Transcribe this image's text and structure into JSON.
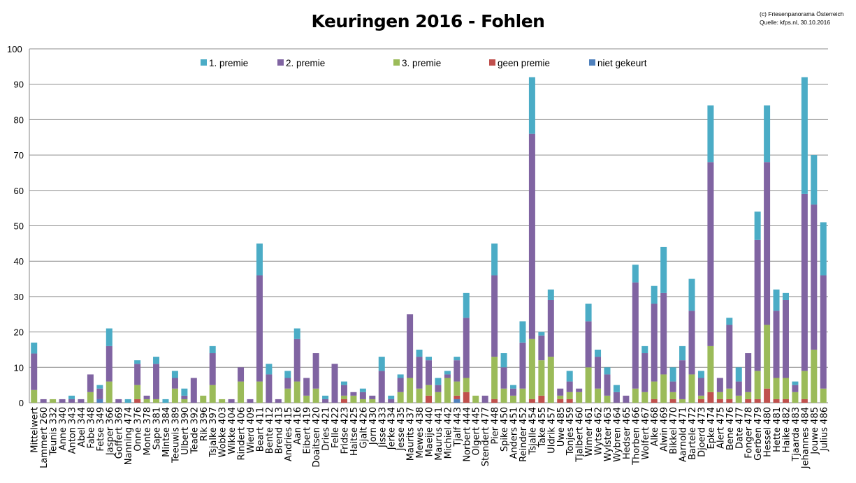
{
  "chart_data": {
    "type": "bar",
    "stacked": true,
    "title": "Keuringen 2016 - Fohlen",
    "credit": [
      "(c) Friesenpanorama Österreich",
      "Quelle: kfps.nl, 30.10.2016"
    ],
    "xlabel": "",
    "ylabel": "",
    "ylim": [
      0,
      100
    ],
    "yticks": [
      0,
      10,
      20,
      30,
      40,
      50,
      60,
      70,
      80,
      90,
      100
    ],
    "grid": true,
    "legend_position": "top",
    "legend": [
      "1. premie",
      "2. premie",
      "3. premie",
      "geen premie",
      "niet gekeurt"
    ],
    "colors": {
      "1. premie": "#4BACC6",
      "2. premie": "#8064A2",
      "3. premie": "#9BBB59",
      "geen premie": "#C0504D",
      "niet gekeurt": "#4F81BD"
    },
    "categories": [
      "Mittelwert",
      "Lammert 260",
      "Teunis 332",
      "Anne 340",
      "Anton 343",
      "Abel 344",
      "Fabe 348",
      "Fetse 349",
      "Jasper 366",
      "Goffert 369",
      "Nanning 474",
      "Onne 376",
      "Monte 378",
      "Sape 381",
      "Mintse 384",
      "Teeuwis 389",
      "Ulbert 390",
      "Teade 392",
      "Rik 396",
      "Tsjalke 397",
      "Wobke 403",
      "Wikke 404",
      "Rindert 406",
      "Wierd 409",
      "Beart 411",
      "Bente 412",
      "Brend 413",
      "Andries 415",
      "Aan 416",
      "Eibert 419",
      "Doaitsen 420",
      "Dries 421",
      "Felle 422",
      "Fridse 423",
      "Haitse 425",
      "Gjalt 426",
      "Jorn 430",
      "Jisse 433",
      "Jerke 434",
      "Jesse 435",
      "Maurits 437",
      "Mewes 438",
      "Maeije 440",
      "Maurus 441",
      "Michiel 442",
      "Tjalf 443",
      "Norbert 444",
      "Olgert 445",
      "Stendert 477",
      "Pier 448",
      "Spike 450",
      "Anders 451",
      "Reinder 452",
      "Tsjalle 454",
      "Take 455",
      "Uldrik 457",
      "Uwe 485",
      "Tonjes 459",
      "Tjalbert 460",
      "Wimer 461",
      "Wytse 462",
      "Wylster 463",
      "Wybren 464",
      "Hedser 465",
      "Thorben 466",
      "Wolfert 467",
      "Alke 468",
      "Alwin 469",
      "Bikkel 470",
      "Aarnold 471",
      "Bartele 472",
      "Djoerd 473",
      "Epke 474",
      "Alert 475",
      "Bene 476",
      "Date 477",
      "Fonger 478",
      "Gerben 479",
      "Hessel 480",
      "Hette 481",
      "Haike 482",
      "Tjaarda 483",
      "Jehannes 484",
      "Jouwe 485",
      "Julius 486"
    ],
    "series": [
      {
        "name": "niet gekeurt",
        "values": [
          0,
          0,
          0,
          0,
          0,
          0,
          0,
          1,
          0,
          0,
          0,
          0,
          0,
          0,
          0,
          0,
          0,
          0,
          0,
          0,
          0,
          0,
          0,
          0,
          0,
          0,
          0,
          0,
          0,
          0,
          0,
          0,
          0,
          0,
          0,
          0,
          0,
          0,
          0,
          0,
          0,
          0,
          0,
          0,
          0,
          1,
          0,
          0,
          0,
          0,
          0,
          0,
          0,
          0,
          0,
          0,
          0,
          0,
          0,
          0,
          0,
          0,
          0,
          0,
          0,
          0,
          0,
          0,
          0,
          0,
          0,
          0,
          0,
          0,
          0,
          0,
          0,
          0,
          0,
          0,
          0,
          0,
          0,
          0,
          0
        ]
      },
      {
        "name": "geen premie",
        "values": [
          0,
          0,
          0,
          0,
          0,
          0,
          0,
          0,
          0,
          0,
          0,
          1,
          0,
          0,
          0,
          0,
          0,
          0,
          0,
          0,
          0,
          0,
          0,
          0,
          0,
          0,
          0,
          0,
          0,
          0,
          0,
          0,
          0,
          1,
          0,
          0,
          0,
          0,
          0,
          0,
          0,
          0,
          2,
          0,
          0,
          1,
          3,
          0,
          0,
          1,
          0,
          0,
          0,
          1,
          2,
          0,
          1,
          1,
          0,
          0,
          0,
          0,
          0,
          0,
          0,
          0,
          1,
          0,
          1,
          0,
          0,
          1,
          3,
          1,
          1,
          0,
          1,
          1,
          4,
          1,
          1,
          0,
          1,
          0,
          0
        ]
      },
      {
        "name": "3. premie",
        "values": [
          3.6,
          0,
          1,
          0,
          0,
          0,
          3,
          0,
          6,
          0,
          0,
          4,
          1,
          1,
          0,
          4,
          1,
          0,
          2,
          5,
          1,
          0,
          6,
          0,
          6,
          0,
          0,
          4,
          6,
          2,
          4,
          0,
          0,
          1,
          2,
          1,
          1,
          0,
          0,
          3,
          7,
          4,
          3,
          3,
          7,
          4,
          4,
          2,
          0,
          12,
          4,
          2,
          4,
          17,
          10,
          13,
          1,
          2,
          3,
          10,
          4,
          2,
          0,
          0,
          4,
          3,
          5,
          8,
          2,
          1,
          8,
          1,
          13,
          2,
          3,
          2,
          2,
          8,
          18,
          6,
          6,
          3,
          8,
          15,
          4
        ]
      },
      {
        "name": "2. premie",
        "values": [
          10.3,
          1,
          0,
          1,
          1,
          1,
          5,
          3,
          10,
          1,
          0,
          6,
          1,
          10,
          0,
          3,
          1,
          7,
          0,
          9,
          0,
          1,
          4,
          1,
          30,
          8,
          1,
          3,
          12,
          5,
          10,
          1,
          11,
          3,
          1,
          2,
          1,
          9,
          1,
          4,
          18,
          9,
          7,
          2,
          1,
          6,
          17,
          0,
          2,
          23,
          6,
          2,
          13,
          58,
          7,
          16,
          2,
          3,
          1,
          13,
          9,
          6,
          3,
          2,
          30,
          11,
          22,
          23,
          3,
          11,
          18,
          5,
          52,
          4,
          18,
          4,
          11,
          37,
          46,
          19,
          22,
          2,
          50,
          41,
          32
        ]
      },
      {
        "name": "1. premie",
        "values": [
          3.1,
          0,
          0,
          0,
          1,
          0,
          0,
          1,
          5,
          0,
          1,
          1,
          0,
          2,
          1,
          2,
          2,
          0,
          0,
          2,
          0,
          0,
          0,
          0,
          9,
          3,
          0,
          2,
          3,
          0,
          0,
          1,
          0,
          1,
          0,
          1,
          0,
          4,
          1,
          1,
          0,
          2,
          1,
          2,
          1,
          1,
          7,
          0,
          0,
          9,
          4,
          1,
          6,
          16,
          1,
          3,
          0,
          3,
          0,
          5,
          2,
          2,
          2,
          0,
          5,
          2,
          5,
          13,
          4,
          4,
          9,
          2,
          16,
          0,
          2,
          4,
          0,
          8,
          16,
          6,
          2,
          1,
          33,
          14,
          15
        ]
      }
    ]
  }
}
